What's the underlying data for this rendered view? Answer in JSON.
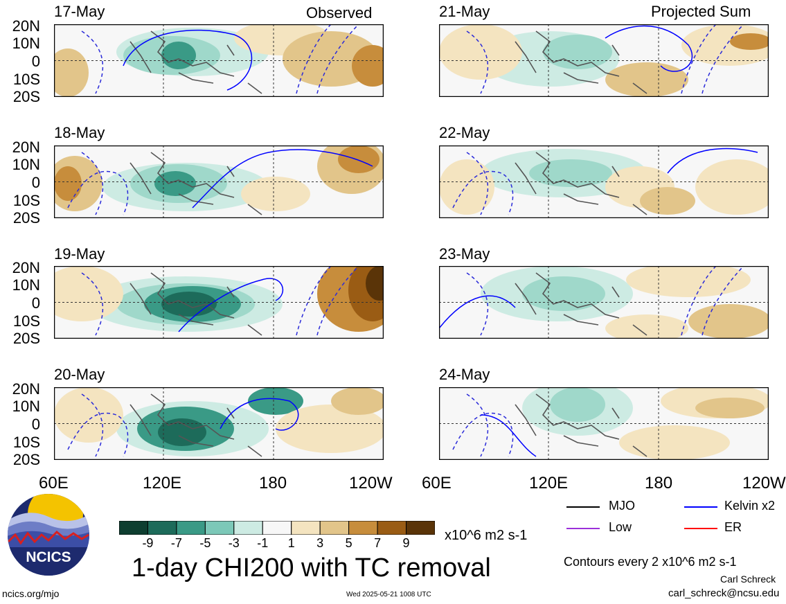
{
  "panel_titles": {
    "left": "Observed",
    "right": "Projected Sum"
  },
  "left_dates": [
    "17-May",
    "18-May",
    "19-May",
    "20-May"
  ],
  "right_dates": [
    "21-May",
    "22-May",
    "23-May",
    "24-May"
  ],
  "lat_labels": [
    "20N",
    "10N",
    "0",
    "10S",
    "20S"
  ],
  "lon_labels_left": [
    "60E",
    "120E",
    "180",
    "120W"
  ],
  "lon_labels_right": [
    "60E",
    "120E",
    "180",
    "120W"
  ],
  "colorbar": {
    "tick_labels": [
      "-9",
      "-7",
      "-5",
      "-3",
      "-1",
      "1",
      "3",
      "5",
      "7",
      "9"
    ],
    "colors": [
      "#0e3e30",
      "#1d6b5a",
      "#3a9a86",
      "#7cc8b8",
      "#cdebe3",
      "#f7f7f7",
      "#f4e4c0",
      "#e2c58a",
      "#c78d3c",
      "#9a5c14",
      "#5a3408"
    ],
    "units": "x10^6 m2 s-1"
  },
  "legend": {
    "mjo": "MJO",
    "low": "Low",
    "kelvin": "Kelvin x2",
    "er": "ER",
    "mjo_color": "#000000",
    "low_color": "#9b30d9",
    "kelvin_color": "#0000ff",
    "er_color": "#ff0000"
  },
  "title": "1-day CHI200 with TC removal",
  "contour_note": "Contours every 2 x10^6 m2 s-1",
  "author": "Carl Schreck",
  "email": "carl_schreck@ncsu.edu",
  "url": "ncics.org/mjo",
  "timestamp": "Wed 2025-05-21 1008 UTC",
  "logo_text": "NCICS"
}
